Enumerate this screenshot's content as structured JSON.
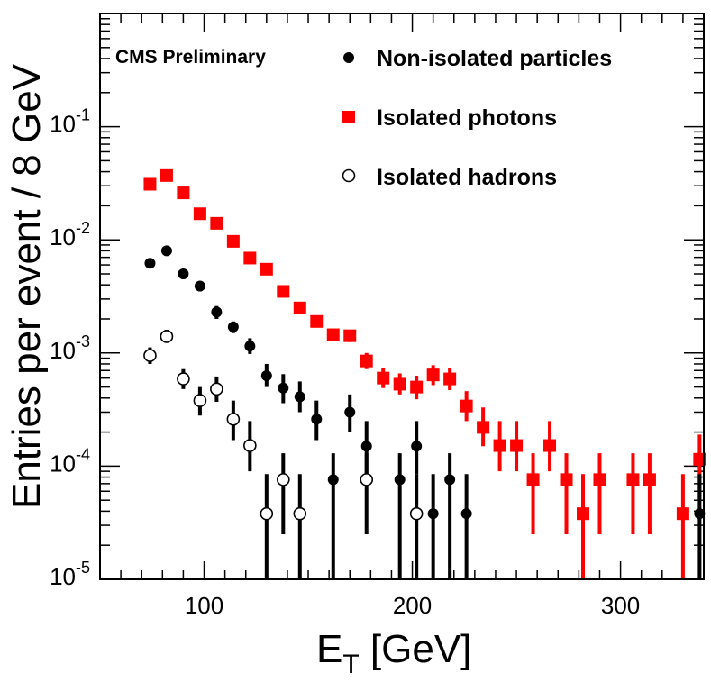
{
  "chart_data": {
    "type": "scatter",
    "title": "",
    "label": "CMS Preliminary",
    "xlabel_main": "E",
    "xlabel_sub": "T",
    "xlabel_rest": " [GeV]",
    "ylabel": "Entries per event / 8 GeV",
    "xlim": [
      50,
      340
    ],
    "ylim": [
      1e-05,
      1
    ],
    "yscale": "log",
    "x_ticks": [
      {
        "value": 100,
        "label": "100"
      },
      {
        "value": 200,
        "label": "200"
      },
      {
        "value": 300,
        "label": "300"
      }
    ],
    "y_ticks": [
      {
        "value": 1e-05,
        "base": "10",
        "exp": "-5"
      },
      {
        "value": 0.0001,
        "base": "10",
        "exp": "-4"
      },
      {
        "value": 0.001,
        "base": "10",
        "exp": "-3"
      },
      {
        "value": 0.01,
        "base": "10",
        "exp": "-2"
      },
      {
        "value": 0.1,
        "base": "10",
        "exp": "-1"
      }
    ],
    "series": [
      {
        "name": "Non-isolated particles",
        "marker": "circle-filled",
        "color": "#000000",
        "points": [
          {
            "x": 74,
            "y": 0.0062,
            "lo": 0.0056,
            "hi": 0.0068
          },
          {
            "x": 82,
            "y": 0.008,
            "lo": 0.0073,
            "hi": 0.0087
          },
          {
            "x": 90,
            "y": 0.005,
            "lo": 0.0045,
            "hi": 0.0055
          },
          {
            "x": 98,
            "y": 0.0039,
            "lo": 0.0035,
            "hi": 0.0043
          },
          {
            "x": 106,
            "y": 0.0023,
            "lo": 0.002,
            "hi": 0.0026
          },
          {
            "x": 114,
            "y": 0.0017,
            "lo": 0.0015,
            "hi": 0.0019
          },
          {
            "x": 122,
            "y": 0.00115,
            "lo": 0.00098,
            "hi": 0.00135
          },
          {
            "x": 130,
            "y": 0.00063,
            "lo": 0.0005,
            "hi": 0.0008
          },
          {
            "x": 138,
            "y": 0.00049,
            "lo": 0.00036,
            "hi": 0.00065
          },
          {
            "x": 146,
            "y": 0.00041,
            "lo": 0.0003,
            "hi": 0.00056
          },
          {
            "x": 154,
            "y": 0.00026,
            "lo": 0.00017,
            "hi": 0.00038
          },
          {
            "x": 162,
            "y": 7.6e-05,
            "lo": 1e-05,
            "hi": 0.00013
          },
          {
            "x": 170,
            "y": 0.0003,
            "lo": 0.0002,
            "hi": 0.00043
          },
          {
            "x": 178,
            "y": 0.00015,
            "lo": 8.5e-05,
            "hi": 0.00025
          },
          {
            "x": 194,
            "y": 7.6e-05,
            "lo": 1e-05,
            "hi": 0.00013
          },
          {
            "x": 202,
            "y": 0.00015,
            "lo": 8.5e-05,
            "hi": 0.00025
          },
          {
            "x": 210,
            "y": 3.8e-05,
            "lo": 1e-05,
            "hi": 8.5e-05
          },
          {
            "x": 218,
            "y": 7.6e-05,
            "lo": 1e-05,
            "hi": 0.00013
          },
          {
            "x": 226,
            "y": 3.8e-05,
            "lo": 1e-05,
            "hi": 8.5e-05
          },
          {
            "x": 338,
            "y": 3.8e-05,
            "lo": 1e-05,
            "hi": 8.5e-05
          }
        ]
      },
      {
        "name": "Isolated photons",
        "marker": "square-filled",
        "color": "#ff0000",
        "points": [
          {
            "x": 74,
            "y": 0.031,
            "lo": 0.03,
            "hi": 0.032
          },
          {
            "x": 82,
            "y": 0.037,
            "lo": 0.036,
            "hi": 0.038
          },
          {
            "x": 90,
            "y": 0.026,
            "lo": 0.025,
            "hi": 0.027
          },
          {
            "x": 98,
            "y": 0.017,
            "lo": 0.0165,
            "hi": 0.0175
          },
          {
            "x": 106,
            "y": 0.014,
            "lo": 0.0135,
            "hi": 0.0145
          },
          {
            "x": 114,
            "y": 0.0097,
            "lo": 0.0093,
            "hi": 0.0101
          },
          {
            "x": 122,
            "y": 0.0069,
            "lo": 0.0066,
            "hi": 0.0072
          },
          {
            "x": 130,
            "y": 0.0055,
            "lo": 0.0052,
            "hi": 0.0058
          },
          {
            "x": 138,
            "y": 0.0035,
            "lo": 0.0033,
            "hi": 0.0037
          },
          {
            "x": 146,
            "y": 0.0025,
            "lo": 0.0023,
            "hi": 0.0027
          },
          {
            "x": 154,
            "y": 0.0019,
            "lo": 0.0017,
            "hi": 0.0021
          },
          {
            "x": 162,
            "y": 0.00145,
            "lo": 0.00128,
            "hi": 0.00164
          },
          {
            "x": 170,
            "y": 0.00142,
            "lo": 0.00125,
            "hi": 0.0016
          },
          {
            "x": 178,
            "y": 0.00085,
            "lo": 0.00072,
            "hi": 0.001
          },
          {
            "x": 186,
            "y": 0.0006,
            "lo": 0.00049,
            "hi": 0.00073
          },
          {
            "x": 194,
            "y": 0.00053,
            "lo": 0.00043,
            "hi": 0.00066
          },
          {
            "x": 202,
            "y": 0.0005,
            "lo": 0.00039,
            "hi": 0.00063
          },
          {
            "x": 210,
            "y": 0.00064,
            "lo": 0.00052,
            "hi": 0.00078
          },
          {
            "x": 218,
            "y": 0.00059,
            "lo": 0.00047,
            "hi": 0.00073
          },
          {
            "x": 226,
            "y": 0.00034,
            "lo": 0.00025,
            "hi": 0.00046
          },
          {
            "x": 234,
            "y": 0.00022,
            "lo": 0.00015,
            "hi": 0.00033
          },
          {
            "x": 242,
            "y": 0.000152,
            "lo": 9e-05,
            "hi": 0.00025
          },
          {
            "x": 250,
            "y": 0.000152,
            "lo": 9e-05,
            "hi": 0.00025
          },
          {
            "x": 258,
            "y": 7.6e-05,
            "lo": 2.5e-05,
            "hi": 0.00013
          },
          {
            "x": 266,
            "y": 0.000152,
            "lo": 9e-05,
            "hi": 0.00025
          },
          {
            "x": 274,
            "y": 7.6e-05,
            "lo": 2.5e-05,
            "hi": 0.00013
          },
          {
            "x": 282,
            "y": 3.8e-05,
            "lo": 1e-05,
            "hi": 8.5e-05
          },
          {
            "x": 290,
            "y": 7.6e-05,
            "lo": 2.5e-05,
            "hi": 0.00013
          },
          {
            "x": 306,
            "y": 7.6e-05,
            "lo": 2.5e-05,
            "hi": 0.00013
          },
          {
            "x": 314,
            "y": 7.6e-05,
            "lo": 2.5e-05,
            "hi": 0.00013
          },
          {
            "x": 330,
            "y": 3.8e-05,
            "lo": 1e-05,
            "hi": 8.5e-05
          },
          {
            "x": 338,
            "y": 0.000115,
            "lo": 5e-05,
            "hi": 0.00019
          }
        ]
      },
      {
        "name": "Isolated hadrons",
        "marker": "circle-open",
        "color": "#000000",
        "points": [
          {
            "x": 74,
            "y": 0.00095,
            "lo": 0.0008,
            "hi": 0.00112
          },
          {
            "x": 82,
            "y": 0.0014,
            "lo": 0.00123,
            "hi": 0.0016
          },
          {
            "x": 90,
            "y": 0.00059,
            "lo": 0.00048,
            "hi": 0.00072
          },
          {
            "x": 98,
            "y": 0.00038,
            "lo": 0.00028,
            "hi": 0.0005
          },
          {
            "x": 106,
            "y": 0.00048,
            "lo": 0.00037,
            "hi": 0.00062
          },
          {
            "x": 114,
            "y": 0.00026,
            "lo": 0.00017,
            "hi": 0.00038
          },
          {
            "x": 122,
            "y": 0.000152,
            "lo": 9e-05,
            "hi": 0.00025
          },
          {
            "x": 130,
            "y": 3.8e-05,
            "lo": 1e-05,
            "hi": 8.5e-05
          },
          {
            "x": 138,
            "y": 7.6e-05,
            "lo": 2.5e-05,
            "hi": 0.00013
          },
          {
            "x": 146,
            "y": 3.8e-05,
            "lo": 1e-05,
            "hi": 8.5e-05
          },
          {
            "x": 178,
            "y": 7.6e-05,
            "lo": 2.5e-05,
            "hi": 0.00013
          },
          {
            "x": 202,
            "y": 3.8e-05,
            "lo": 1e-05,
            "hi": 8.5e-05
          }
        ]
      }
    ]
  }
}
